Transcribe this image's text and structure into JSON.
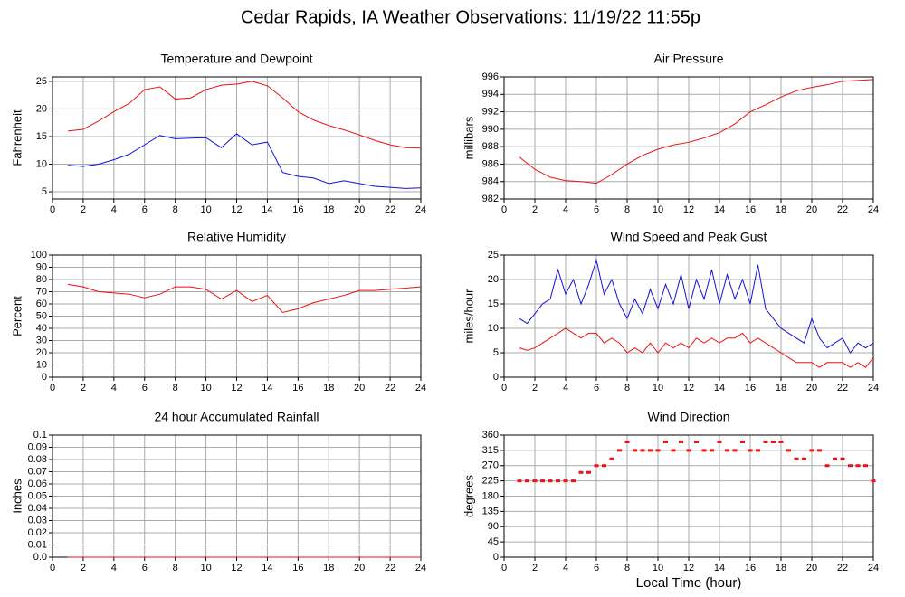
{
  "title": "Cedar Rapids, IA Weather Observations: 11/19/22 11:55p",
  "xlabel": "Local Time (hour)",
  "chart_data": [
    {
      "type": "line",
      "title": "Temperature and Dewpoint",
      "ylabel": "Fahrenheit",
      "xlim": [
        0,
        24
      ],
      "xticks": [
        0,
        2,
        4,
        6,
        8,
        10,
        12,
        14,
        16,
        18,
        20,
        22,
        24
      ],
      "ylim": [
        3.7,
        25.8
      ],
      "yticks": [
        5,
        10,
        15,
        20,
        25
      ],
      "grid": true,
      "x": [
        1,
        2,
        3,
        4,
        5,
        6,
        7,
        8,
        9,
        10,
        11,
        12,
        13,
        14,
        15,
        16,
        17,
        18,
        19,
        20,
        21,
        22,
        23,
        24
      ],
      "series": [
        {
          "color": "#ee1111",
          "values": [
            16,
            16.3,
            17.8,
            19.5,
            21,
            23.5,
            24,
            21.8,
            22,
            23.5,
            24.3,
            24.5,
            25,
            24.2,
            22,
            19.5,
            18,
            17,
            16.2,
            15.3,
            14.3,
            13.5,
            13,
            12.9
          ]
        },
        {
          "color": "#1111dd",
          "values": [
            9.8,
            9.6,
            10,
            10.8,
            11.8,
            13.5,
            15.2,
            14.6,
            14.7,
            14.8,
            13,
            15.5,
            13.5,
            14,
            8.5,
            7.8,
            7.5,
            6.5,
            7,
            6.5,
            6,
            5.8,
            5.6,
            5.7
          ]
        }
      ]
    },
    {
      "type": "line",
      "title": "Air Pressure",
      "ylabel": "millibars",
      "xlim": [
        0,
        24
      ],
      "xticks": [
        0,
        2,
        4,
        6,
        8,
        10,
        12,
        14,
        16,
        18,
        20,
        22,
        24
      ],
      "ylim": [
        982,
        996
      ],
      "yticks": [
        982,
        984,
        986,
        988,
        990,
        992,
        994,
        996
      ],
      "grid": true,
      "x": [
        1,
        2,
        3,
        4,
        5,
        6,
        7,
        8,
        9,
        10,
        11,
        12,
        13,
        14,
        15,
        16,
        17,
        18,
        19,
        20,
        21,
        22,
        23,
        24
      ],
      "series": [
        {
          "color": "#ee1111",
          "values": [
            986.8,
            985.4,
            984.5,
            984.1,
            984,
            983.8,
            984.8,
            986,
            987,
            987.7,
            988.2,
            988.5,
            989,
            989.6,
            990.6,
            992,
            992.8,
            993.7,
            994.4,
            994.8,
            995.1,
            995.5,
            995.6,
            995.7
          ]
        }
      ]
    },
    {
      "type": "line",
      "title": "Relative Humidity",
      "ylabel": "Percent",
      "xlim": [
        0,
        24
      ],
      "xticks": [
        0,
        2,
        4,
        6,
        8,
        10,
        12,
        14,
        16,
        18,
        20,
        22,
        24
      ],
      "ylim": [
        0,
        100
      ],
      "yticks": [
        0,
        10,
        20,
        30,
        40,
        50,
        60,
        70,
        80,
        90,
        100
      ],
      "grid": true,
      "x": [
        1,
        2,
        3,
        4,
        5,
        6,
        7,
        8,
        9,
        10,
        11,
        12,
        13,
        14,
        15,
        16,
        17,
        18,
        19,
        20,
        21,
        22,
        23,
        24
      ],
      "series": [
        {
          "color": "#ee1111",
          "values": [
            76,
            74,
            70,
            69,
            68,
            65,
            68,
            74,
            74,
            72,
            64,
            71,
            62,
            67,
            53,
            56,
            61,
            64,
            67,
            71,
            71,
            72,
            73,
            74
          ]
        }
      ]
    },
    {
      "type": "line",
      "title": "Wind Speed and Peak Gust",
      "ylabel": "miles/hour",
      "xlim": [
        0,
        24
      ],
      "xticks": [
        0,
        2,
        4,
        6,
        8,
        10,
        12,
        14,
        16,
        18,
        20,
        22,
        24
      ],
      "ylim": [
        0,
        25
      ],
      "yticks": [
        0,
        5,
        10,
        15,
        20,
        25
      ],
      "grid": true,
      "x": [
        1,
        1.5,
        2,
        2.5,
        3,
        3.5,
        4,
        4.5,
        5,
        5.5,
        6,
        6.5,
        7,
        7.5,
        8,
        8.5,
        9,
        9.5,
        10,
        10.5,
        11,
        11.5,
        12,
        12.5,
        13,
        13.5,
        14,
        14.5,
        15,
        15.5,
        16,
        16.5,
        17,
        17.5,
        18,
        18.5,
        19,
        19.5,
        20,
        20.5,
        21,
        21.5,
        22,
        22.5,
        23,
        23.5,
        24
      ],
      "series": [
        {
          "color": "#1111dd",
          "values": [
            12,
            11,
            13,
            15,
            16,
            22,
            17,
            20,
            15,
            19,
            24,
            17,
            20,
            15,
            12,
            16,
            13,
            18,
            14,
            19,
            15,
            21,
            14,
            20,
            16,
            22,
            15,
            21,
            16,
            20,
            15,
            23,
            14,
            12,
            10,
            9,
            8,
            7,
            12,
            8,
            6,
            7,
            8,
            5,
            7,
            6,
            7
          ]
        },
        {
          "color": "#ee1111",
          "values": [
            6,
            5.5,
            6,
            7,
            8,
            9,
            10,
            9,
            8,
            9,
            9,
            7,
            8,
            7,
            5,
            6,
            5,
            7,
            5,
            7,
            6,
            7,
            6,
            8,
            7,
            8,
            7,
            8,
            8,
            9,
            7,
            8,
            7,
            6,
            5,
            4,
            3,
            3,
            3,
            2,
            3,
            3,
            3,
            2,
            3,
            2,
            4
          ]
        }
      ]
    },
    {
      "type": "line",
      "title": "24 hour Accumulated Rainfall",
      "ylabel": "Inches",
      "xlim": [
        0,
        24
      ],
      "xticks": [
        0,
        2,
        4,
        6,
        8,
        10,
        12,
        14,
        16,
        18,
        20,
        22,
        24
      ],
      "ylim": [
        0,
        0.1
      ],
      "yticks": [
        {
          "value": 0,
          "label": "0.0"
        },
        0.01,
        0.02,
        0.03,
        0.04,
        0.05,
        0.06,
        0.07,
        0.08,
        0.09,
        0.1
      ],
      "grid": true,
      "x": [
        1,
        24
      ],
      "series": [
        {
          "color": "#ee1111",
          "values": [
            0,
            0
          ]
        }
      ]
    },
    {
      "type": "scatter",
      "title": "Wind Direction",
      "ylabel": "degrees",
      "xlim": [
        0,
        24
      ],
      "xticks": [
        0,
        2,
        4,
        6,
        8,
        10,
        12,
        14,
        16,
        18,
        20,
        22,
        24
      ],
      "ylim": [
        0,
        360
      ],
      "yticks": [
        0,
        45,
        90,
        135,
        180,
        225,
        270,
        315,
        360
      ],
      "grid": true,
      "x": [
        1,
        1.5,
        2,
        2.5,
        3,
        3.5,
        4,
        4.5,
        5,
        5.5,
        6,
        6.5,
        7,
        7.5,
        8,
        8.5,
        9,
        9.5,
        10,
        10.5,
        11,
        11.5,
        12,
        12.5,
        13,
        13.5,
        14,
        14.5,
        15,
        15.5,
        16,
        16.5,
        17,
        17.5,
        18,
        18.5,
        19,
        19.5,
        20,
        20.5,
        21,
        21.5,
        22,
        22.5,
        23,
        23.5,
        24
      ],
      "series": [
        {
          "color": "#ee1111",
          "values": [
            225,
            225,
            225,
            225,
            225,
            225,
            225,
            225,
            250,
            250,
            270,
            270,
            290,
            315,
            340,
            315,
            315,
            315,
            315,
            340,
            315,
            340,
            315,
            340,
            315,
            315,
            340,
            315,
            315,
            340,
            315,
            315,
            340,
            340,
            340,
            315,
            290,
            290,
            315,
            315,
            270,
            290,
            290,
            270,
            270,
            270,
            225
          ]
        }
      ]
    }
  ]
}
